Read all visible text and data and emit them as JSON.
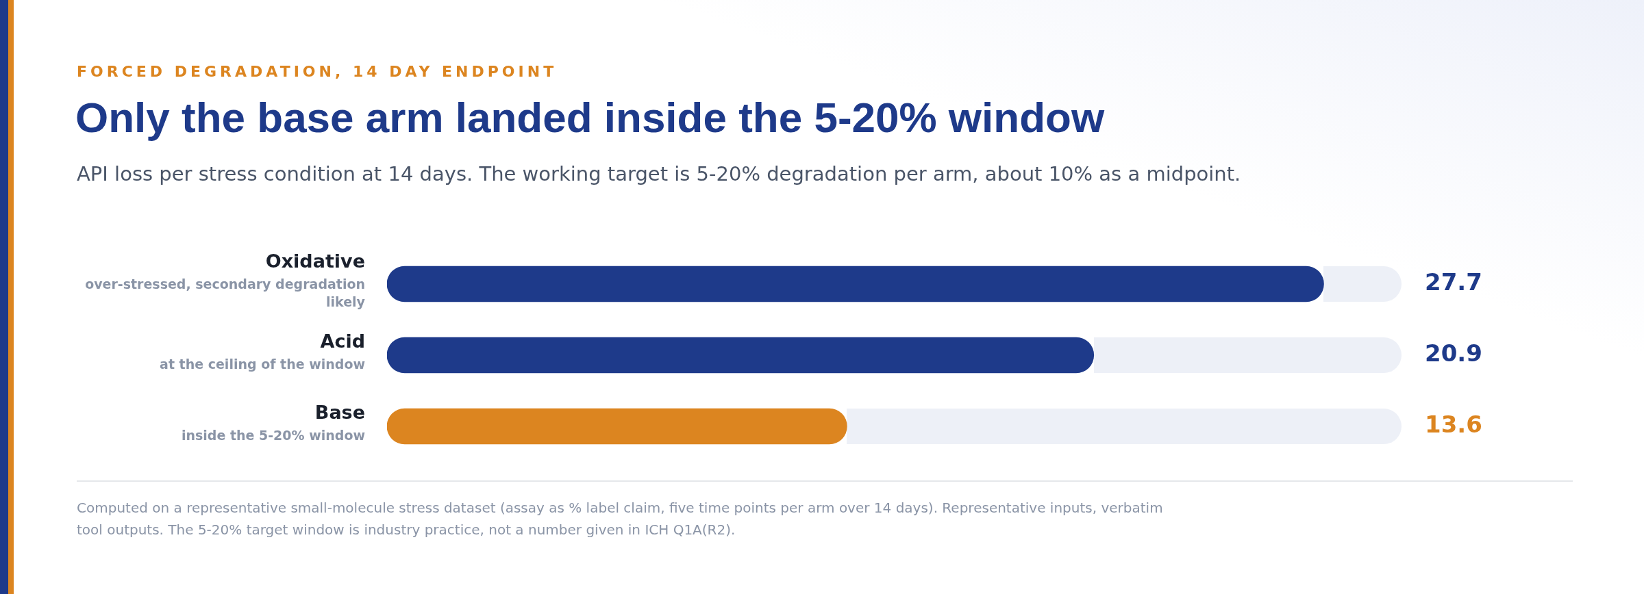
{
  "chart_data": {
    "type": "bar",
    "orientation": "horizontal",
    "title": "Only the base arm landed inside the 5-20% window",
    "subtitle": "API loss per stress condition at 14 days. The working target is 5-20% degradation per arm, about 10% as a midpoint.",
    "categories": [
      "Oxidative",
      "Acid",
      "Base"
    ],
    "values": [
      27.7,
      20.9,
      13.6
    ],
    "colors": [
      "#1e3a8a",
      "#1e3a8a",
      "#dc8520"
    ],
    "xlim": [
      0,
      30
    ],
    "tick_labels": false,
    "legend": false,
    "data_labels": true,
    "annotations": [
      "FORCED DEGRADATION, 14 DAY ENDPOINT",
      "Computed on a representative small-molecule stress dataset (assay as % label claim, five time points per arm over 14 days). Representative inputs, verbatim tool outputs. The 5-20% target window is industry practice, not a number given in ICH Q1A(R2).",
      "over-stressed, secondary degradation likely",
      "at the ceiling of the window",
      "inside the 5-20% window"
    ]
  }
}
